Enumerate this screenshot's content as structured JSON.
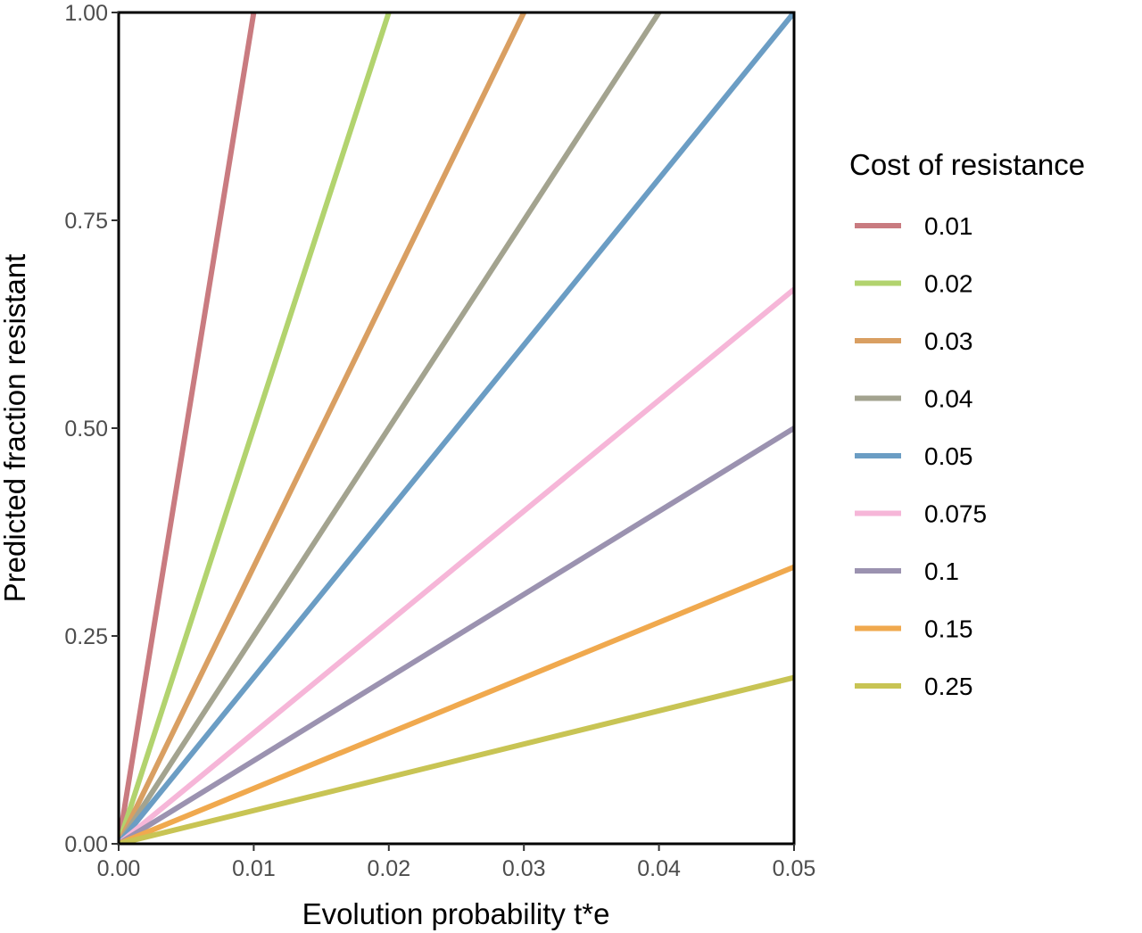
{
  "chart_data": {
    "type": "line",
    "title": "",
    "xlabel": "Evolution probability t*e",
    "ylabel": "Predicted fraction resistant",
    "xlim": [
      0,
      0.05
    ],
    "ylim": [
      0,
      1
    ],
    "x_ticks": [
      "0.00",
      "0.01",
      "0.02",
      "0.03",
      "0.04",
      "0.05"
    ],
    "y_ticks": [
      "0.00",
      "0.25",
      "0.50",
      "0.75",
      "1.00"
    ],
    "grid": false,
    "legend": {
      "title": "Cost of resistance",
      "position": "right"
    },
    "series": [
      {
        "name": "0.01",
        "color": "#c97b80",
        "points": [
          [
            0,
            0
          ],
          [
            0.01,
            1.0
          ]
        ]
      },
      {
        "name": "0.02",
        "color": "#b2d36e",
        "points": [
          [
            0,
            0
          ],
          [
            0.02,
            1.0
          ]
        ]
      },
      {
        "name": "0.03",
        "color": "#d99f62",
        "points": [
          [
            0,
            0
          ],
          [
            0.03,
            1.0
          ]
        ]
      },
      {
        "name": "0.04",
        "color": "#a3a38f",
        "points": [
          [
            0,
            0
          ],
          [
            0.04,
            1.0
          ]
        ]
      },
      {
        "name": "0.05",
        "color": "#6b9dc4",
        "points": [
          [
            0,
            0
          ],
          [
            0.05,
            1.0
          ]
        ]
      },
      {
        "name": "0.075",
        "color": "#f6b6d8",
        "points": [
          [
            0,
            0
          ],
          [
            0.05,
            0.667
          ]
        ]
      },
      {
        "name": "0.1",
        "color": "#9b92b0",
        "points": [
          [
            0,
            0
          ],
          [
            0.05,
            0.5
          ]
        ]
      },
      {
        "name": "0.15",
        "color": "#f0a94e",
        "points": [
          [
            0,
            0
          ],
          [
            0.05,
            0.333
          ]
        ]
      },
      {
        "name": "0.25",
        "color": "#c8c454",
        "points": [
          [
            0,
            0
          ],
          [
            0.05,
            0.2
          ]
        ]
      }
    ]
  }
}
